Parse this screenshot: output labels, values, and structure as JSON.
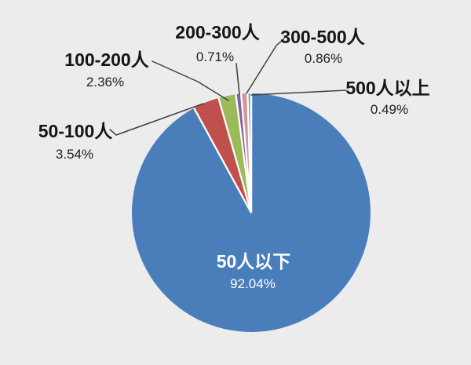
{
  "chart_data": {
    "type": "pie",
    "title": "",
    "legend": "none",
    "background_color": "#ECECEC",
    "leader_line_color": "#3F3F3F",
    "slice_gap_color": "#FFFFFF",
    "label_text_color": "#151515",
    "inside_label_text_color": "#FFFFFF",
    "start_angle_deg": -90,
    "direction": "clockwise",
    "categories": [
      "50人以下",
      "50-100人",
      "100-200人",
      "200-300人",
      "300-500人",
      "500人以上"
    ],
    "values": [
      92.04,
      3.54,
      2.36,
      0.71,
      0.86,
      0.49
    ],
    "slices": [
      {
        "label": "50人以下",
        "value": 92.04,
        "pct_text": "92.04%",
        "color": "#4A7EBB",
        "label_placement": "inside"
      },
      {
        "label": "50-100人",
        "value": 3.54,
        "pct_text": "3.54%",
        "color": "#C0504D",
        "label_placement": "outside"
      },
      {
        "label": "100-200人",
        "value": 2.36,
        "pct_text": "2.36%",
        "color": "#9BBB59",
        "label_placement": "outside"
      },
      {
        "label": "200-300人",
        "value": 0.71,
        "pct_text": "0.71%",
        "color": "#8064A2",
        "label_placement": "outside"
      },
      {
        "label": "300-500人",
        "value": 0.86,
        "pct_text": "0.86%",
        "color": "#D49694",
        "label_placement": "outside"
      },
      {
        "label": "500人以上",
        "value": 0.49,
        "pct_text": "0.49%",
        "color": "#7DA0D0",
        "label_placement": "outside"
      }
    ]
  }
}
